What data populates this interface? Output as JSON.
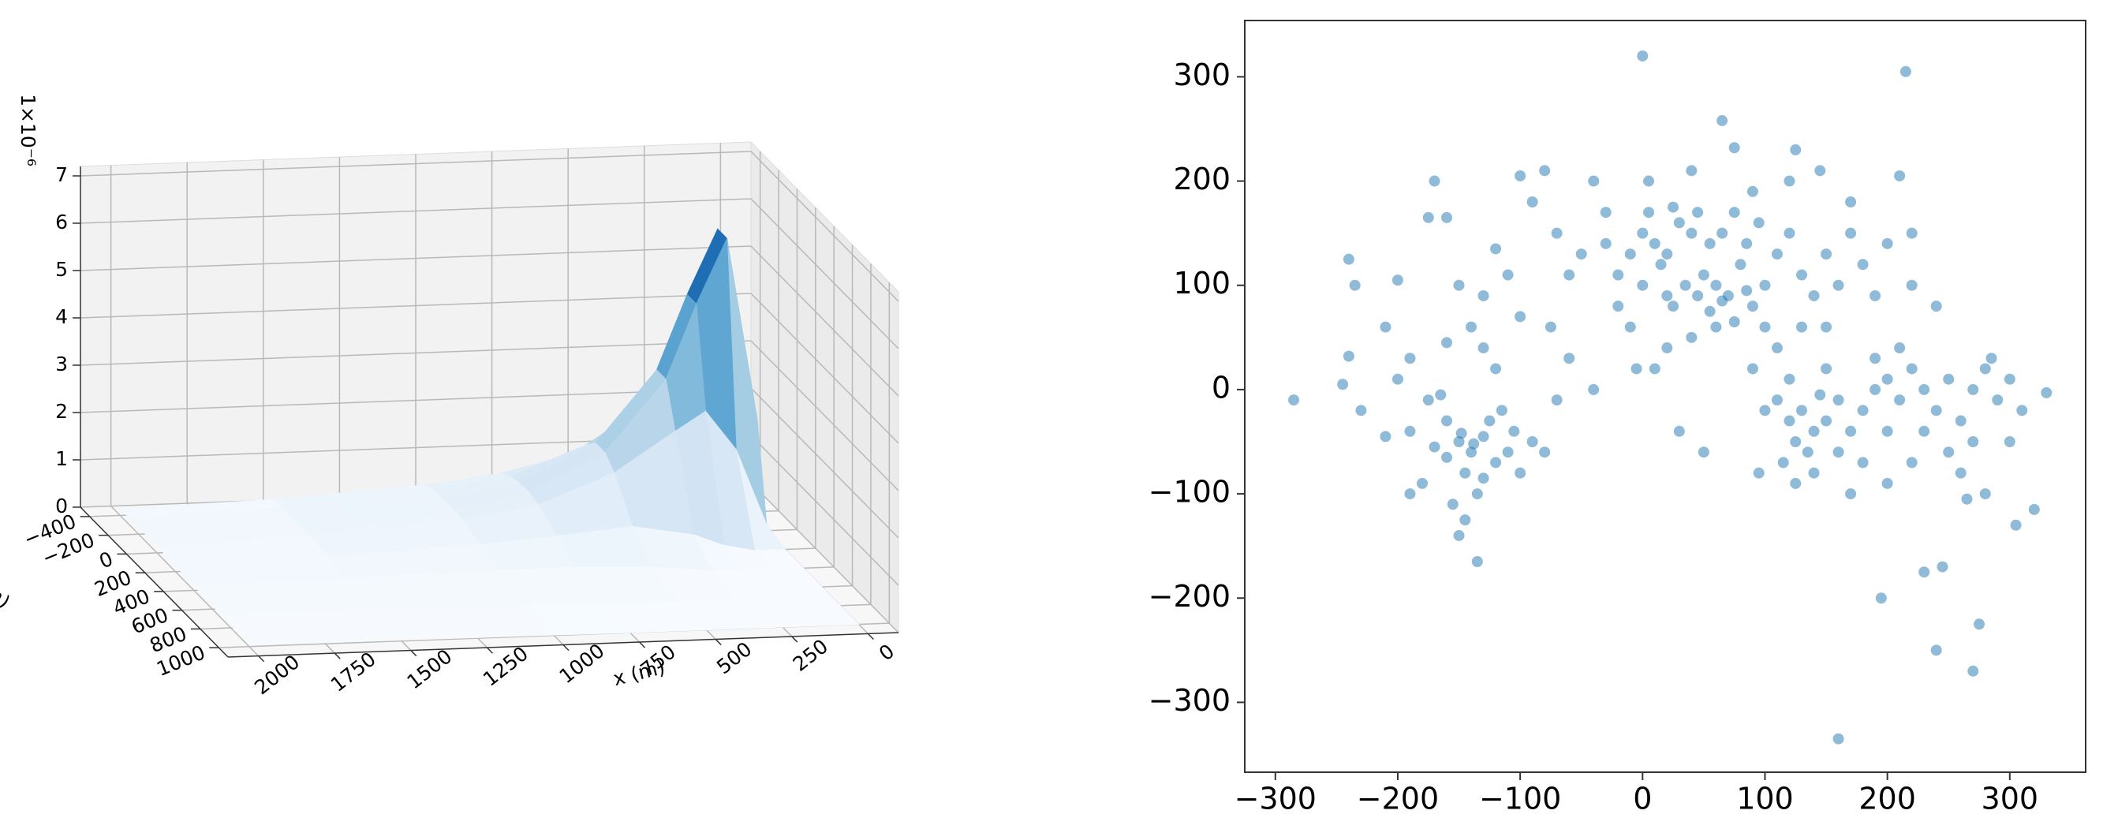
{
  "chart_data": [
    {
      "type": "surface3d",
      "zoffset_label": "1×10⁻⁶",
      "xlabel": "x (m)",
      "ylabel": "y (m)",
      "xlim": [
        -100,
        2100
      ],
      "ylim": [
        -500,
        1100
      ],
      "zlim": [
        0,
        7.2
      ],
      "xticks": [
        0,
        250,
        500,
        750,
        1000,
        1250,
        1500,
        1750,
        2000
      ],
      "yticks": [
        {
          "value": -400,
          "label": "−400"
        },
        {
          "value": -200,
          "label": "−200"
        },
        0,
        200,
        400,
        600,
        800,
        1000
      ],
      "zticks": [
        0,
        1,
        2,
        3,
        4,
        5,
        6,
        7
      ],
      "colormap": [
        "#f7fbff",
        "#deebf7",
        "#c6dbef",
        "#9ecae1",
        "#6baed6",
        "#4292c6",
        "#2171b5",
        "#08519c",
        "#08306b"
      ],
      "x": [
        0,
        100,
        200,
        300,
        500,
        750,
        1000,
        1500,
        2000
      ],
      "y": [
        -400,
        -300,
        -200,
        -100,
        0,
        200,
        400,
        700,
        1000
      ],
      "z": [
        [
          0,
          0.13,
          2.12,
          2.12,
          0.13,
          0,
          0,
          0,
          0
        ],
        [
          0.15,
          1.74,
          6.0,
          6.0,
          1.74,
          0,
          0,
          0,
          0
        ],
        [
          0.79,
          2.57,
          4.64,
          4.64,
          2.57,
          0.13,
          0,
          0,
          0
        ],
        [
          1.09,
          2.17,
          3.07,
          3.07,
          2.17,
          0.38,
          0.02,
          0,
          0
        ],
        [
          0.97,
          1.34,
          1.57,
          1.57,
          1.34,
          0.6,
          0.14,
          0,
          0
        ],
        [
          0.6,
          0.72,
          0.79,
          0.79,
          0.72,
          0.46,
          0.2,
          0.03,
          0
        ],
        [
          0.41,
          0.47,
          0.5,
          0.5,
          0.47,
          0.34,
          0.19,
          0.05,
          0.01
        ],
        [
          0.22,
          0.24,
          0.25,
          0.25,
          0.24,
          0.2,
          0.14,
          0.07,
          0.02
        ],
        [
          0.14,
          0.15,
          0.15,
          0.15,
          0.15,
          0.13,
          0.1,
          0.06,
          0.03
        ]
      ]
    },
    {
      "type": "scatter",
      "color": "#1f77b4",
      "xlim": [
        -325,
        362
      ],
      "ylim": [
        -367,
        354
      ],
      "xticks": [
        {
          "value": -300,
          "label": "−300"
        },
        {
          "value": -200,
          "label": "−200"
        },
        {
          "value": -100,
          "label": "−100"
        },
        0,
        100,
        200,
        300
      ],
      "yticks": [
        {
          "value": -300,
          "label": "−300"
        },
        {
          "value": -200,
          "label": "−200"
        },
        {
          "value": -100,
          "label": "−100"
        },
        0,
        100,
        200,
        300
      ],
      "points": [
        [
          0,
          320
        ],
        [
          215,
          305
        ],
        [
          -285,
          -10
        ],
        [
          330,
          -3
        ],
        [
          160,
          -335
        ],
        [
          270,
          -270
        ],
        [
          240,
          -250
        ],
        [
          275,
          -225
        ],
        [
          195,
          -200
        ],
        [
          230,
          -175
        ],
        [
          245,
          -170
        ],
        [
          320,
          -115
        ],
        [
          305,
          -130
        ],
        [
          -135,
          -165
        ],
        [
          65,
          258
        ],
        [
          125,
          230
        ],
        [
          75,
          232
        ],
        [
          -230,
          -20
        ],
        [
          -245,
          5
        ],
        [
          -240,
          32
        ],
        [
          -240,
          125
        ],
        [
          -200,
          105
        ],
        [
          -235,
          100
        ],
        [
          -150,
          -50
        ],
        [
          -140,
          -60
        ],
        [
          -130,
          -45
        ],
        [
          -120,
          -70
        ],
        [
          -160,
          -30
        ],
        [
          -145,
          -80
        ],
        [
          -135,
          -100
        ],
        [
          -155,
          -110
        ],
        [
          -170,
          -55
        ],
        [
          -125,
          -30
        ],
        [
          -110,
          -60
        ],
        [
          -100,
          -80
        ],
        [
          -175,
          -10
        ],
        [
          -165,
          -5
        ],
        [
          -150,
          -140
        ],
        [
          -180,
          -90
        ],
        [
          -190,
          -100
        ],
        [
          -105,
          -40
        ],
        [
          -90,
          -50
        ],
        [
          -80,
          -60
        ],
        [
          -115,
          -20
        ],
        [
          -145,
          -125
        ],
        [
          -160,
          -65
        ],
        [
          -130,
          -85
        ],
        [
          -138,
          -52
        ],
        [
          -148,
          -42
        ],
        [
          -170,
          200
        ],
        [
          -160,
          165
        ],
        [
          -175,
          165
        ],
        [
          -150,
          100
        ],
        [
          -130,
          90
        ],
        [
          -110,
          110
        ],
        [
          -120,
          135
        ],
        [
          -100,
          205
        ],
        [
          -80,
          210
        ],
        [
          -90,
          180
        ],
        [
          -70,
          150
        ],
        [
          -140,
          60
        ],
        [
          -130,
          40
        ],
        [
          -160,
          45
        ],
        [
          -190,
          30
        ],
        [
          -200,
          10
        ],
        [
          -120,
          20
        ],
        [
          -60,
          30
        ],
        [
          -70,
          -10
        ],
        [
          -40,
          0
        ],
        [
          -75,
          60
        ],
        [
          -100,
          70
        ],
        [
          -60,
          110
        ],
        [
          -50,
          130
        ],
        [
          -40,
          200
        ],
        [
          -30,
          170
        ],
        [
          -20,
          80
        ],
        [
          -210,
          60
        ],
        [
          -210,
          -45
        ],
        [
          -190,
          -40
        ],
        [
          0,
          150
        ],
        [
          10,
          140
        ],
        [
          20,
          130
        ],
        [
          30,
          160
        ],
        [
          15,
          120
        ],
        [
          40,
          150
        ],
        [
          50,
          110
        ],
        [
          60,
          100
        ],
        [
          70,
          90
        ],
        [
          80,
          120
        ],
        [
          90,
          80
        ],
        [
          100,
          100
        ],
        [
          -10,
          130
        ],
        [
          -20,
          110
        ],
        [
          5,
          170
        ],
        [
          25,
          175
        ],
        [
          45,
          170
        ],
        [
          55,
          140
        ],
        [
          65,
          150
        ],
        [
          75,
          170
        ],
        [
          85,
          140
        ],
        [
          95,
          160
        ],
        [
          35,
          100
        ],
        [
          20,
          90
        ],
        [
          0,
          100
        ],
        [
          -30,
          140
        ],
        [
          110,
          130
        ],
        [
          120,
          150
        ],
        [
          130,
          110
        ],
        [
          140,
          90
        ],
        [
          150,
          130
        ],
        [
          160,
          100
        ],
        [
          170,
          150
        ],
        [
          180,
          120
        ],
        [
          200,
          140
        ],
        [
          190,
          90
        ],
        [
          150,
          60
        ],
        [
          130,
          60
        ],
        [
          110,
          40
        ],
        [
          100,
          60
        ],
        [
          60,
          60
        ],
        [
          40,
          50
        ],
        [
          20,
          40
        ],
        [
          -10,
          60
        ],
        [
          25,
          80
        ],
        [
          45,
          90
        ],
        [
          55,
          75
        ],
        [
          65,
          85
        ],
        [
          85,
          95
        ],
        [
          75,
          65
        ],
        [
          5,
          200
        ],
        [
          40,
          210
        ],
        [
          90,
          190
        ],
        [
          120,
          200
        ],
        [
          145,
          210
        ],
        [
          170,
          180
        ],
        [
          210,
          205
        ],
        [
          220,
          150
        ],
        [
          220,
          100
        ],
        [
          240,
          80
        ],
        [
          30,
          -40
        ],
        [
          50,
          -60
        ],
        [
          10,
          20
        ],
        [
          -5,
          20
        ],
        [
          120,
          -30
        ],
        [
          130,
          -20
        ],
        [
          140,
          -40
        ],
        [
          110,
          -10
        ],
        [
          150,
          -30
        ],
        [
          160,
          -10
        ],
        [
          125,
          -50
        ],
        [
          135,
          -60
        ],
        [
          145,
          -5
        ],
        [
          100,
          -20
        ],
        [
          115,
          -70
        ],
        [
          140,
          -80
        ],
        [
          160,
          -60
        ],
        [
          170,
          -40
        ],
        [
          180,
          -20
        ],
        [
          190,
          0
        ],
        [
          200,
          10
        ],
        [
          210,
          -10
        ],
        [
          220,
          20
        ],
        [
          230,
          0
        ],
        [
          240,
          -20
        ],
        [
          250,
          10
        ],
        [
          260,
          -30
        ],
        [
          270,
          0
        ],
        [
          280,
          20
        ],
        [
          290,
          -10
        ],
        [
          300,
          10
        ],
        [
          310,
          -20
        ],
        [
          250,
          -60
        ],
        [
          270,
          -50
        ],
        [
          230,
          -40
        ],
        [
          200,
          -40
        ],
        [
          180,
          -70
        ],
        [
          170,
          -100
        ],
        [
          200,
          -90
        ],
        [
          220,
          -70
        ],
        [
          260,
          -80
        ],
        [
          280,
          -100
        ],
        [
          300,
          -50
        ],
        [
          190,
          30
        ],
        [
          210,
          40
        ],
        [
          150,
          20
        ],
        [
          120,
          10
        ],
        [
          90,
          20
        ],
        [
          95,
          -80
        ],
        [
          125,
          -90
        ],
        [
          265,
          -105
        ],
        [
          285,
          30
        ]
      ]
    }
  ]
}
